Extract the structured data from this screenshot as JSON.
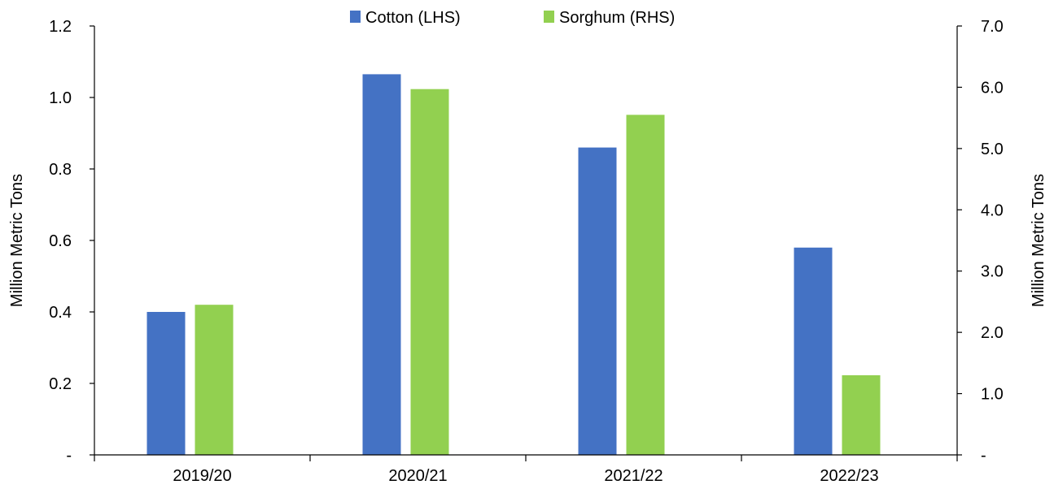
{
  "chart_data": {
    "type": "bar",
    "categories": [
      "2019/20",
      "2020/21",
      "2021/22",
      "2022/23"
    ],
    "series": [
      {
        "name": "Cotton (LHS)",
        "axis": "left",
        "color": "#4472C4",
        "values": [
          0.4,
          1.065,
          0.86,
          0.58
        ]
      },
      {
        "name": "Sorghum (RHS)",
        "axis": "right",
        "color": "#92D050",
        "values": [
          2.45,
          5.97,
          5.55,
          1.3
        ]
      }
    ],
    "y_left": {
      "label": "Million Metric Tons",
      "lim": [
        0,
        1.2
      ],
      "ticks": [
        0,
        0.2,
        0.4,
        0.6,
        0.8,
        1.0,
        1.2
      ],
      "tick_labels": [
        "-",
        "0.2",
        "0.4",
        "0.6",
        "0.8",
        "1.0",
        "1.2"
      ]
    },
    "y_right": {
      "label": "Million Metric Tons",
      "lim": [
        0,
        7.0
      ],
      "ticks": [
        0,
        1,
        2,
        3,
        4,
        5,
        6,
        7
      ],
      "tick_labels": [
        "-",
        "1.0",
        "2.0",
        "3.0",
        "4.0",
        "5.0",
        "6.0",
        "7.0"
      ]
    },
    "legend_position": "top-center",
    "grid": false
  }
}
